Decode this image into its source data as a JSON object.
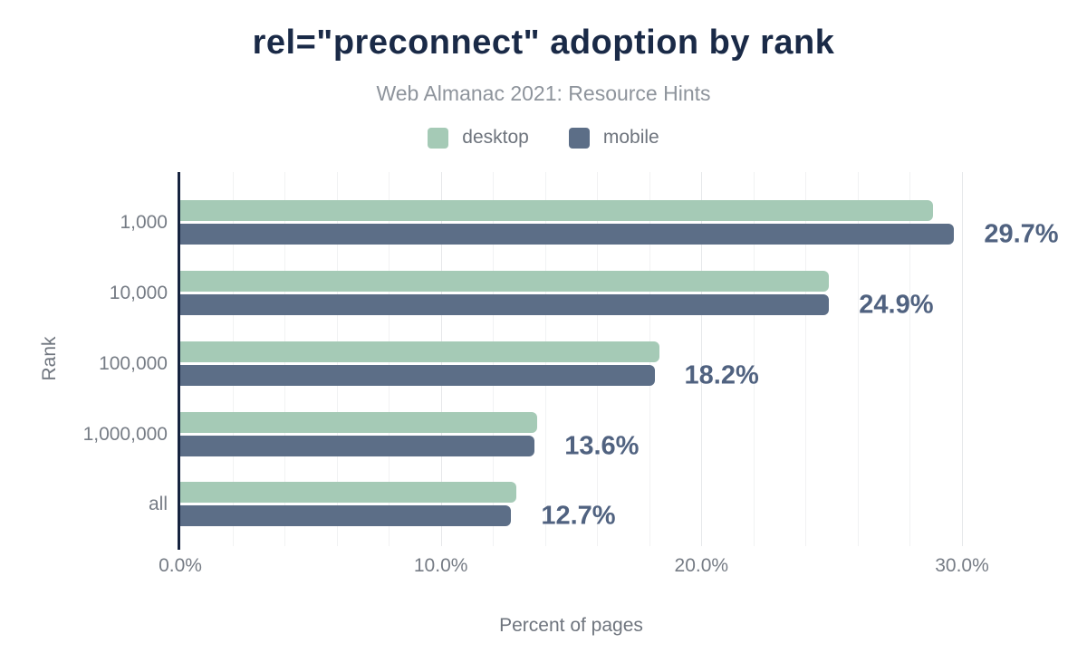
{
  "header": {
    "title": "rel=\"preconnect\" adoption by rank",
    "subtitle": "Web Almanac 2021: Resource Hints"
  },
  "legend": [
    {
      "label": "desktop",
      "color": "#a5cab6"
    },
    {
      "label": "mobile",
      "color": "#5c6e87"
    }
  ],
  "chart_data": {
    "type": "bar",
    "orientation": "horizontal",
    "title": "rel=\"preconnect\" adoption by rank",
    "subtitle": "Web Almanac 2021: Resource Hints",
    "categories": [
      "1,000",
      "10,000",
      "100,000",
      "1,000,000",
      "all"
    ],
    "series": [
      {
        "name": "desktop",
        "color": "#a5cab6",
        "values": [
          28.9,
          24.9,
          18.4,
          13.7,
          12.9
        ]
      },
      {
        "name": "mobile",
        "color": "#5c6e87",
        "values": [
          29.7,
          24.9,
          18.2,
          13.6,
          12.7
        ]
      }
    ],
    "data_labels": {
      "labeled_series": "mobile",
      "values": [
        "29.7%",
        "24.9%",
        "18.2%",
        "13.6%",
        "12.7%"
      ]
    },
    "xlabel": "Percent of pages",
    "ylabel": "Rank",
    "xlim": [
      0,
      30
    ],
    "x_ticks": [
      {
        "value": 0,
        "label": "0.0%"
      },
      {
        "value": 10,
        "label": "10.0%"
      },
      {
        "value": 20,
        "label": "20.0%"
      },
      {
        "value": 30,
        "label": "30.0%"
      }
    ],
    "grid_step_percent": 2,
    "grid": "vertical-only",
    "legend_position": "top"
  },
  "colors": {
    "title": "#1a2a47",
    "subtitle": "#8e949c",
    "legend_text": "#6e747d",
    "axis_line": "#16233f",
    "tick_label": "#767c85",
    "axis_title": "#6f757e",
    "data_label": "#506280",
    "grid_major": "#e6e8ea",
    "grid_minor": "#f1f2f3",
    "background": "#ffffff"
  }
}
